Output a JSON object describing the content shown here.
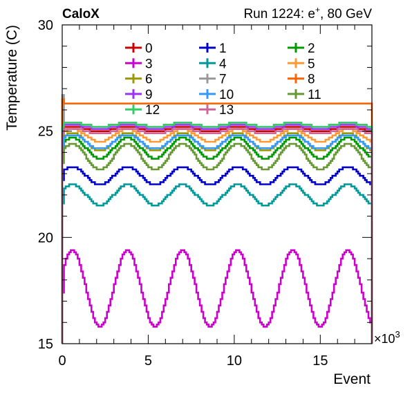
{
  "header": {
    "experiment": "CaloX",
    "run_info": "Run 1224: e",
    "run_info_sup": "+",
    "run_info_tail": ", 80 GeV"
  },
  "chart_data": {
    "type": "line",
    "title": "",
    "xlabel": "Event",
    "ylabel": "Temperature (C)",
    "x_multiplier_label": "×10",
    "x_multiplier_exp": "3",
    "xlim": [
      0,
      18
    ],
    "ylim": [
      15,
      30
    ],
    "x_ticks": [
      0,
      5,
      10,
      15
    ],
    "x_tick_labels": [
      "0",
      "5",
      "10",
      "15"
    ],
    "y_ticks": [
      15,
      20,
      25,
      30
    ],
    "y_tick_labels": [
      "15",
      "20",
      "25",
      "30"
    ],
    "grid": false,
    "legend_placement": "top",
    "series": [
      {
        "name": "0",
        "color": "#cc0000",
        "base": 25.1,
        "amp": 0.15,
        "start": 25.0,
        "spike": null
      },
      {
        "name": "1",
        "color": "#0000cc",
        "base": 22.9,
        "amp": 0.4,
        "start": 22.7,
        "spike": null
      },
      {
        "name": "2",
        "color": "#009900",
        "base": 24.2,
        "amp": 0.5,
        "start": 24.0,
        "spike": null
      },
      {
        "name": "3",
        "color": "#cc00cc",
        "base": 17.6,
        "amp": 1.8,
        "start": 17.4,
        "spike": null
      },
      {
        "name": "4",
        "color": "#009999",
        "base": 22.0,
        "amp": 0.5,
        "start": 21.6,
        "spike": null
      },
      {
        "name": "5",
        "color": "#ff9933",
        "base": 24.8,
        "amp": 0.3,
        "start": 24.6,
        "spike": null
      },
      {
        "name": "6",
        "color": "#999900",
        "base": 24.5,
        "amp": 0.4,
        "start": 24.3,
        "spike": null
      },
      {
        "name": "7",
        "color": "#999999",
        "base": 25.3,
        "amp": 0.1,
        "start": 26.7,
        "spike": null
      },
      {
        "name": "8",
        "color": "#ff6600",
        "base": 26.3,
        "amp": 0.05,
        "start": 26.5,
        "spike": "edges"
      },
      {
        "name": "9",
        "color": "#9933ff",
        "base": 25.2,
        "amp": 0.1,
        "start": 25.1,
        "spike": null
      },
      {
        "name": "10",
        "color": "#3399ff",
        "base": 24.5,
        "amp": 0.35,
        "start": 24.2,
        "spike": null
      },
      {
        "name": "11",
        "color": "#669933",
        "base": 23.8,
        "amp": 0.6,
        "start": 23.5,
        "spike": null
      },
      {
        "name": "12",
        "color": "#33cc66",
        "base": 25.3,
        "amp": 0.1,
        "start": 25.2,
        "spike": null
      },
      {
        "name": "13",
        "color": "#cc6699",
        "base": 25.0,
        "amp": 0.15,
        "start": 24.9,
        "spike": null
      }
    ],
    "period_kevents": 3.2,
    "phase_peak_kevents": 0.6
  }
}
